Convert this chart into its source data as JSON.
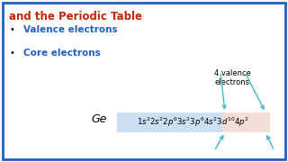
{
  "title_line1": "and the Periodic Table",
  "title_color": "#cc2200",
  "bullet1": "Valence electrons",
  "bullet2": "Core electrons",
  "bullet_color": "#2060c0",
  "bg_color": "#ffffff",
  "border_color": "#2060c0",
  "ge_label": "Ge",
  "valence_label": "4 valence\nelectrons",
  "config_bg": "#ccdff5",
  "config_highlight": "#f5ddd8",
  "arrow_color": "#40b8cc",
  "title_fontsize": 8.5,
  "bullet_fontsize": 7.5,
  "ge_fontsize": 9,
  "config_fontsize": 6.2,
  "valence_fontsize": 6.0
}
